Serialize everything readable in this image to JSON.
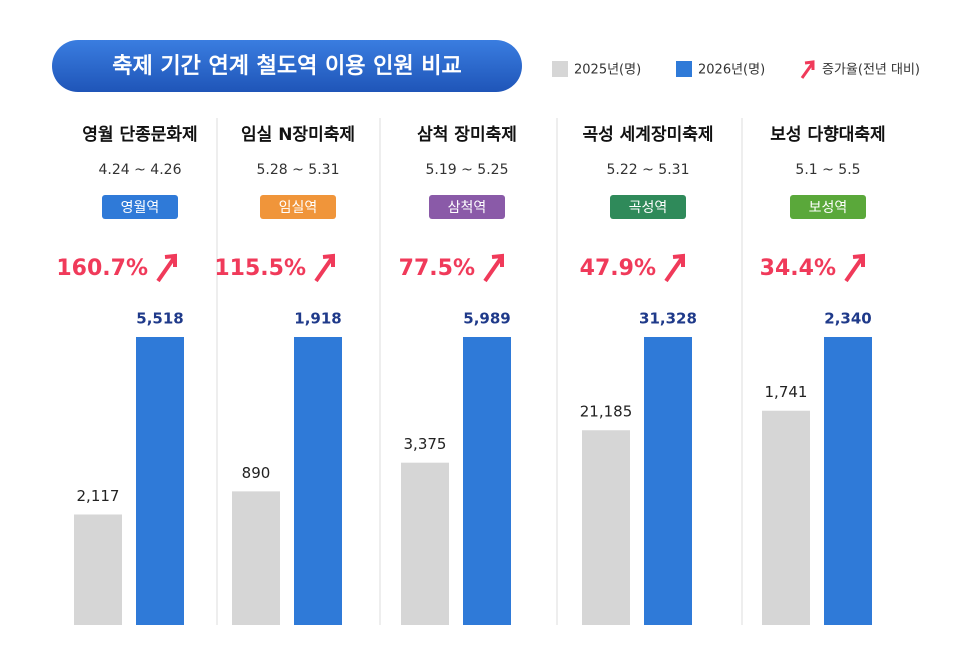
{
  "title": "축제 기간 연계 철도역 이용 인원 비교",
  "growth_legend": "증가율(전년 대비)",
  "chart_data": [
    {
      "type": "bar",
      "title": "영월 단종문화제",
      "dates": "4.24 ~ 4.26",
      "station": "영월역",
      "station_color": "#2f7ad8",
      "annotation": "160.7%",
      "series": [
        {
          "name": "2025년(명)",
          "color": "#d6d6d6",
          "values": [
            2117
          ],
          "value_labels": [
            "2,117"
          ]
        },
        {
          "name": "2026년(명)",
          "color": "#2f7ad8",
          "values": [
            5518
          ],
          "value_labels": [
            "5,518"
          ]
        }
      ]
    },
    {
      "type": "bar",
      "title": "임실 N장미축제",
      "dates": "5.28 ~ 5.31",
      "station": "임실역",
      "station_color": "#f0953a",
      "annotation": "115.5%",
      "series": [
        {
          "name": "2025년(명)",
          "color": "#d6d6d6",
          "values": [
            890
          ],
          "value_labels": [
            "890"
          ]
        },
        {
          "name": "2026년(명)",
          "color": "#2f7ad8",
          "values": [
            1918
          ],
          "value_labels": [
            "1,918"
          ]
        }
      ]
    },
    {
      "type": "bar",
      "title": "삼척 장미축제",
      "dates": "5.19 ~ 5.25",
      "station": "삼척역",
      "station_color": "#8a5aa8",
      "annotation": "77.5%",
      "series": [
        {
          "name": "2025년(명)",
          "color": "#d6d6d6",
          "values": [
            3375
          ],
          "value_labels": [
            "3,375"
          ]
        },
        {
          "name": "2026년(명)",
          "color": "#2f7ad8",
          "values": [
            5989
          ],
          "value_labels": [
            "5,989"
          ]
        }
      ]
    },
    {
      "type": "bar",
      "title": "곡성 세계장미축제",
      "dates": "5.22 ~ 5.31",
      "station": "곡성역",
      "station_color": "#2f8a5a",
      "annotation": "47.9%",
      "series": [
        {
          "name": "2025년(명)",
          "color": "#d6d6d6",
          "values": [
            21185
          ],
          "value_labels": [
            "21,185"
          ]
        },
        {
          "name": "2026년(명)",
          "color": "#2f7ad8",
          "values": [
            31328
          ],
          "value_labels": [
            "31,328"
          ]
        }
      ]
    },
    {
      "type": "bar",
      "title": "보성 다향대축제",
      "dates": "5.1 ~ 5.5",
      "station": "보성역",
      "station_color": "#5aa83a",
      "annotation": "34.4%",
      "series": [
        {
          "name": "2025년(명)",
          "color": "#d6d6d6",
          "values": [
            1741
          ],
          "value_labels": [
            "1,741"
          ]
        },
        {
          "name": "2026년(명)",
          "color": "#2f7ad8",
          "values": [
            2340
          ],
          "value_labels": [
            "2,340"
          ]
        }
      ]
    }
  ]
}
